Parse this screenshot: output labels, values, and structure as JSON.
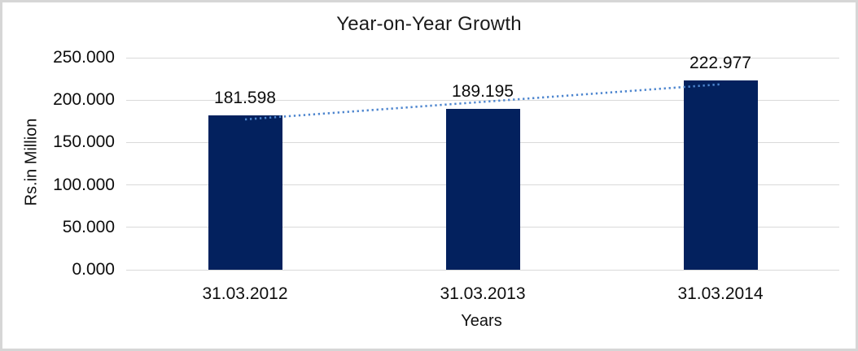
{
  "frame": {
    "background": "#ffffff",
    "border_color": "#d6d6d6",
    "left_edge_line_color": "#3f3f3f"
  },
  "chart_data": {
    "type": "bar",
    "title": "Year-on-Year Growth",
    "xlabel": "Years",
    "ylabel": "Rs.in Million",
    "categories": [
      "31.03.2012",
      "31.03.2013",
      "31.03.2014"
    ],
    "values": [
      181.598,
      189.195,
      222.977
    ],
    "value_labels": [
      "181.598",
      "189.195",
      "222.977"
    ],
    "y_ticks": [
      {
        "value": 0,
        "label": "0.000"
      },
      {
        "value": 50,
        "label": "50.000"
      },
      {
        "value": 100,
        "label": "100.000"
      },
      {
        "value": 150,
        "label": "150.000"
      },
      {
        "value": 200,
        "label": "200.000"
      },
      {
        "value": 250,
        "label": "250.000"
      }
    ],
    "ylim": [
      0,
      250
    ],
    "grid": true,
    "legend": "none",
    "bar_color": "#03215e",
    "gridline_color": "#d9d9d9",
    "text_color": "#0d0d0d",
    "trendline": {
      "type": "linear",
      "style": "dotted",
      "color": "#4e86cf",
      "trend_values": [
        177.234,
        197.923,
        218.613
      ]
    }
  }
}
